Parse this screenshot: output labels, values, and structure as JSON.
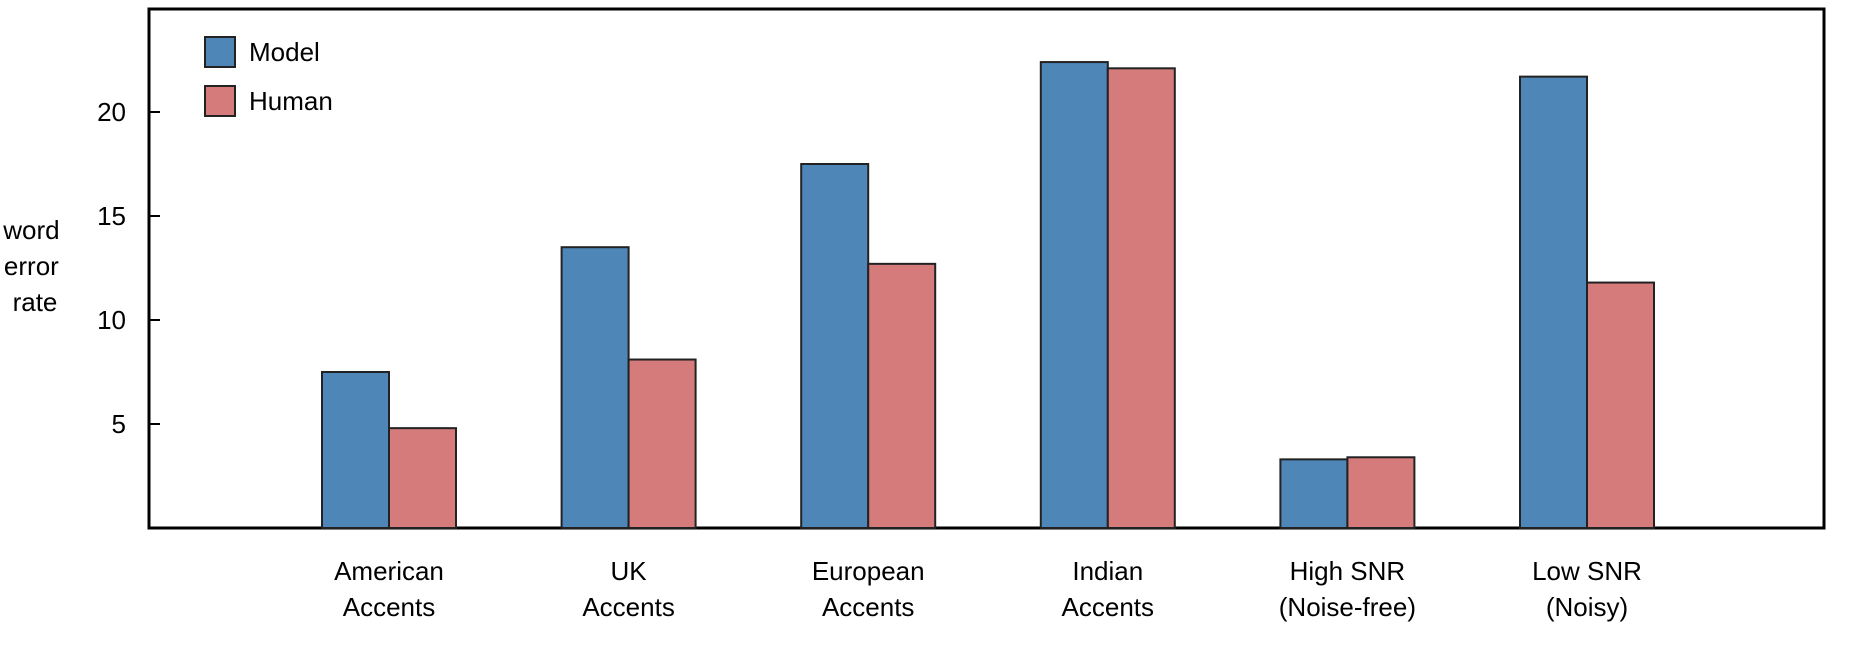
{
  "chart_data": {
    "type": "bar",
    "title": "",
    "xlabel": "",
    "ylabel": [
      "word",
      "error",
      "rate"
    ],
    "ylim": [
      0,
      24.3
    ],
    "yticks": [
      5,
      10,
      15,
      20
    ],
    "categories": [
      [
        "American",
        "Accents"
      ],
      [
        "UK",
        "Accents"
      ],
      [
        "European",
        "Accents"
      ],
      [
        "Indian",
        "Accents"
      ],
      [
        "High SNR",
        "(Noise-free)"
      ],
      [
        "Low SNR",
        "(Noisy)"
      ]
    ],
    "series": [
      {
        "name": "Model",
        "color": "#4f86b8",
        "values": [
          7.5,
          13.5,
          17.5,
          22.4,
          3.3,
          21.7
        ]
      },
      {
        "name": "Human",
        "color": "#d57b7b",
        "values": [
          4.8,
          8.1,
          12.7,
          22.1,
          3.4,
          11.8
        ]
      }
    ],
    "legend": {
      "position": "top-left"
    },
    "grid": false
  }
}
